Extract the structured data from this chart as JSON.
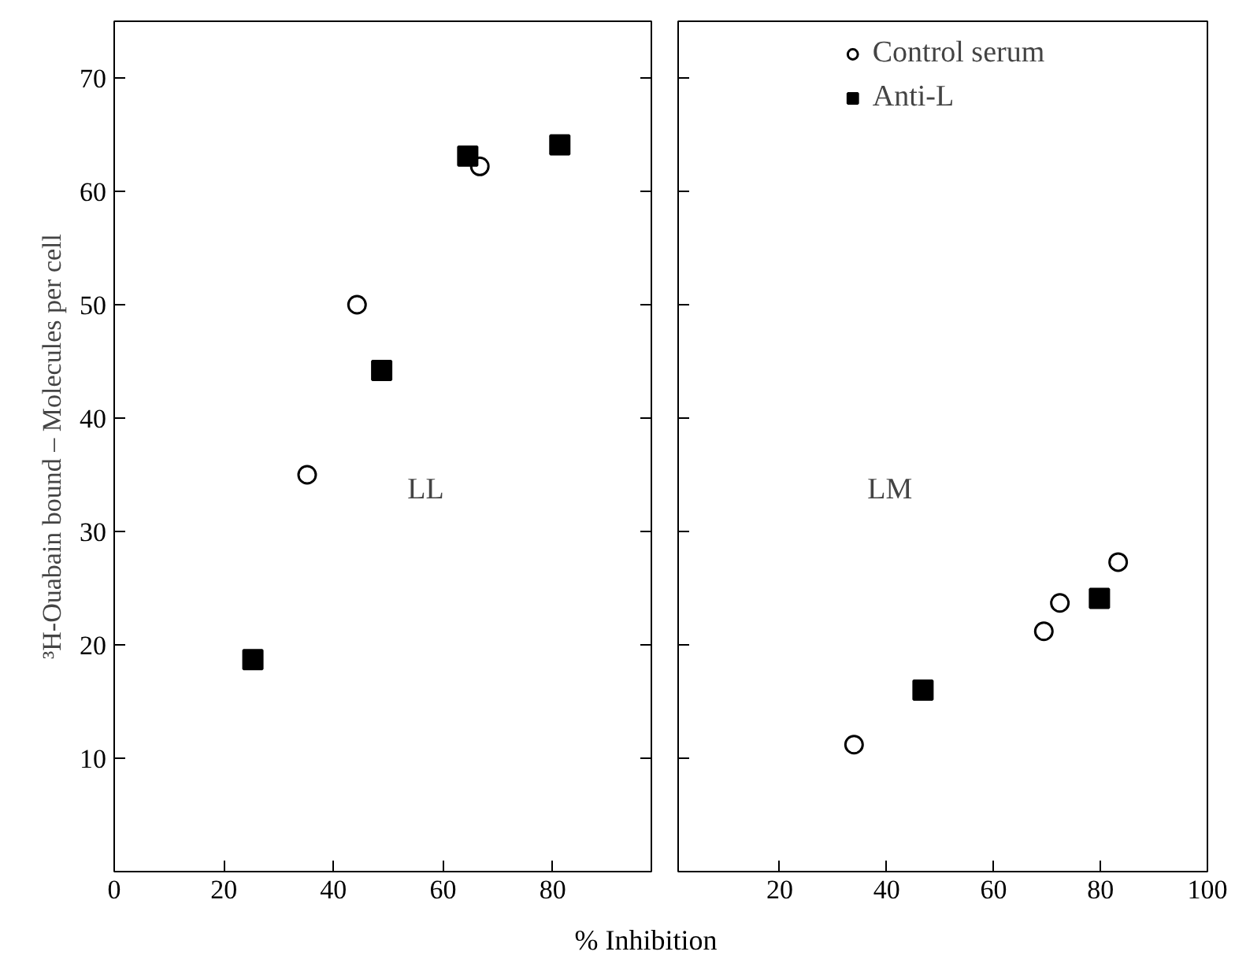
{
  "chart_data": [
    {
      "type": "scatter",
      "ylabel": "³H-Ouabain bound – Molecules per cell",
      "xlabel": "% Inhibition",
      "annotations": [
        "LL"
      ],
      "xlim": [
        0,
        98
      ],
      "xticks": [
        0,
        20,
        40,
        60,
        80
      ],
      "ylim": [
        0,
        75
      ],
      "yticks": [
        10,
        20,
        30,
        40,
        50,
        60,
        70
      ],
      "grid": false,
      "legend": false,
      "series": [
        {
          "color": "#000000",
          "marker": "circle",
          "x": [
            35.2,
            44.3,
            66.7
          ],
          "values": [
            35,
            50,
            62.2
          ]
        },
        {
          "color": "#000000",
          "marker": "square",
          "x": [
            25.3,
            48.8,
            64.5,
            81.3
          ],
          "values": [
            18.7,
            44.2,
            63.1,
            64.1
          ]
        }
      ]
    },
    {
      "type": "scatter",
      "annotations": [
        "LM"
      ],
      "xlim": [
        1,
        100
      ],
      "xticks": [
        20,
        40,
        60,
        80,
        100
      ],
      "ylim": [
        0,
        75
      ],
      "yticks": [
        10,
        20,
        30,
        40,
        50,
        60,
        70
      ],
      "tick_labels": "x",
      "grid": false,
      "legend": "top",
      "series": [
        {
          "name": "Control serum",
          "color": "#000000",
          "marker": "circle",
          "x": [
            33.9,
            69.4,
            72.4,
            83.3
          ],
          "values": [
            11.2,
            21.2,
            23.7,
            27.3
          ]
        },
        {
          "name": "Anti-L",
          "color": "#000000",
          "marker": "square",
          "x": [
            46.8,
            79.8
          ],
          "values": [
            16.0,
            24.1
          ]
        }
      ]
    }
  ]
}
